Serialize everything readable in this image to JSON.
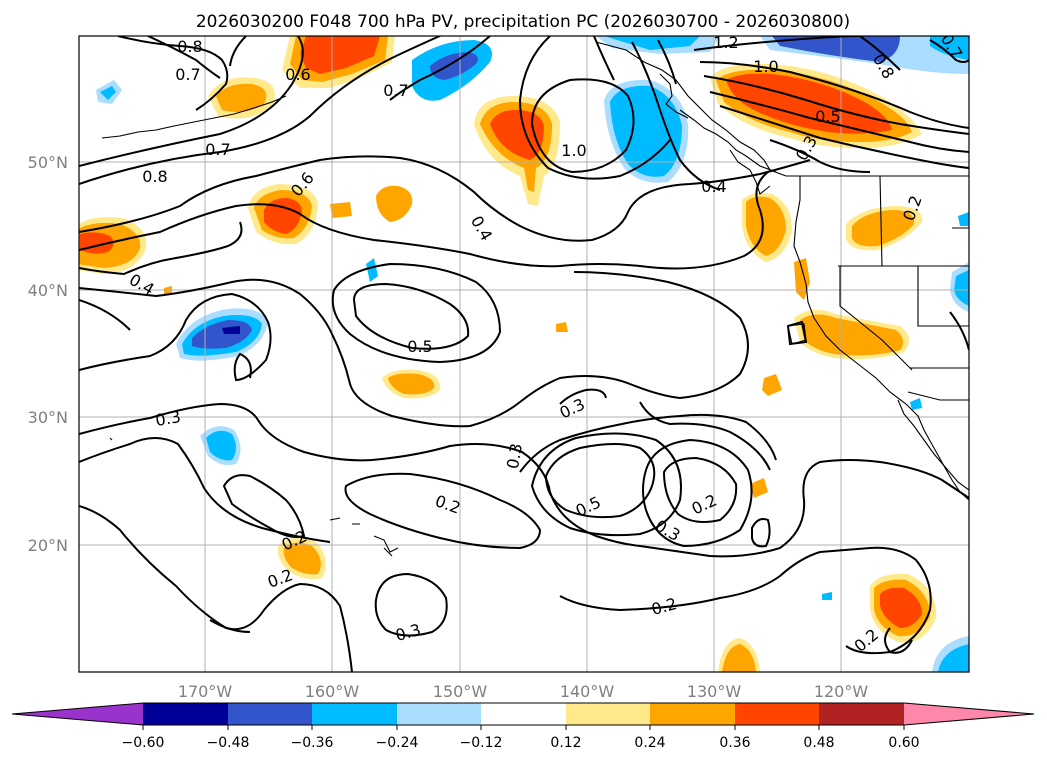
{
  "title": "2026030200 F048 700 hPa PV, precipitation PC (2026030700 - 2026030800)",
  "axes": {
    "lat_labels": [
      "50°N",
      "40°N",
      "30°N",
      "20°N"
    ],
    "lon_labels": [
      "170°W",
      "160°W",
      "150°W",
      "140°W",
      "130°W",
      "120°W"
    ]
  },
  "colorbar": {
    "ticks": [
      "−0.60",
      "−0.48",
      "−0.36",
      "−0.24",
      "−0.12",
      "0.12",
      "0.24",
      "0.36",
      "0.48",
      "0.60"
    ],
    "colors": {
      "below": "#9933cc",
      "n048": "#000099",
      "n036": "#3355cc",
      "n024": "#00bbff",
      "n012": "#aaddff",
      "zero": "#ffffff",
      "p012": "#ffe98a",
      "p024": "#ffa500",
      "p036": "#ff4500",
      "p048": "#b22222",
      "above": "#ff88aa"
    }
  },
  "pv_labels": {
    "l1": "0.8",
    "l2": "0.7",
    "l3": "0.6",
    "l4": "0.7",
    "l5": "1.2",
    "l6": "1.0",
    "l7": "0.5",
    "l8": "0.7",
    "l9": "0.8",
    "l10": "0.6",
    "l11": "1.0",
    "l12": "0.4",
    "l13": "0.4",
    "l14": "0.4",
    "l15": "0.5",
    "l16": "0.3",
    "l17": "0.3",
    "l18": "0.3",
    "l19": "0.2",
    "l20": "0.5",
    "l21": "0.2",
    "l22": "0.3",
    "l23": "0.2",
    "l24": "0.2",
    "l25": "0.2",
    "l26": "0.3",
    "l27": "0.2",
    "l28": "0.2",
    "l29": "0.3",
    "l30": "0.8",
    "l31": "0.7"
  }
}
